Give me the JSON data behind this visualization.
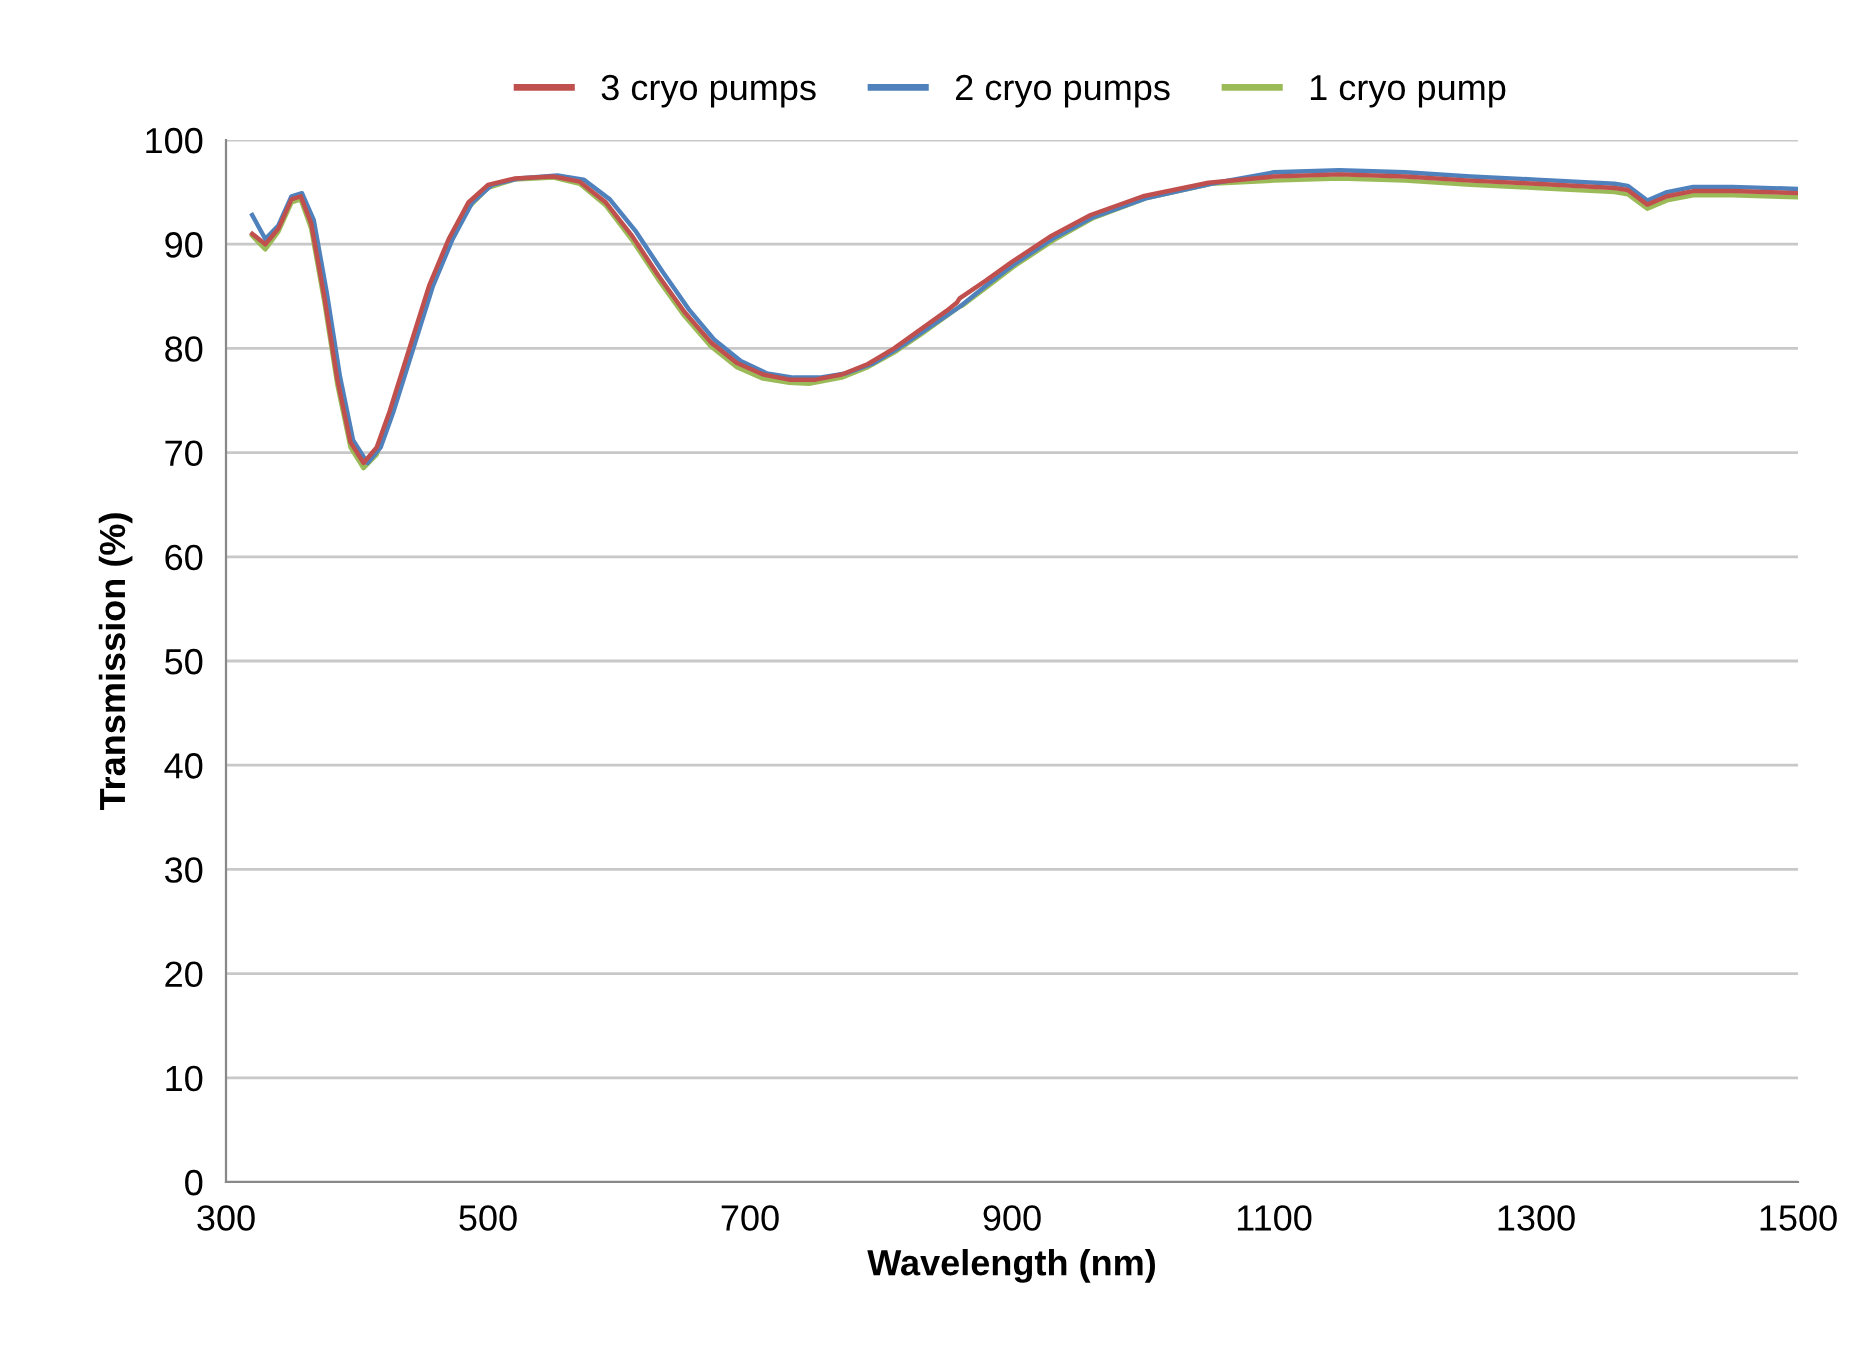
{
  "chart_data": {
    "type": "line",
    "xlabel": "Wavelength (nm)",
    "ylabel": "Transmission (%)",
    "xlim": [
      300,
      1500
    ],
    "xticks": [
      300,
      500,
      700,
      900,
      1100,
      1300,
      1500
    ],
    "ylim": [
      0,
      100
    ],
    "yticks": [
      0,
      10,
      20,
      30,
      40,
      50,
      60,
      70,
      80,
      90,
      100
    ],
    "grid": "y",
    "legend": "top",
    "marker": "none",
    "line_style": "solid",
    "series": [
      {
        "name": "3 cryo pumps",
        "color": "#c0504d",
        "x": [
          320,
          330,
          340,
          350,
          357,
          365,
          375,
          385,
          395,
          405,
          415,
          425,
          440,
          455,
          470,
          485,
          500,
          520,
          550,
          570,
          590,
          610,
          630,
          650,
          670,
          690,
          710,
          730,
          750,
          770,
          790,
          810,
          830,
          850,
          858,
          860,
          880,
          900,
          930,
          960,
          1000,
          1050,
          1100,
          1150,
          1200,
          1250,
          1300,
          1360,
          1370,
          1385,
          1400,
          1420,
          1450,
          1500
        ],
        "values": [
          91,
          90,
          91.5,
          94.3,
          94.6,
          92,
          85,
          77,
          71,
          69,
          70.5,
          74,
          80,
          86,
          90.5,
          94,
          95.7,
          96.3,
          96.5,
          96,
          94,
          90.8,
          87,
          83.5,
          80.6,
          78.6,
          77.5,
          77,
          77,
          77.5,
          78.5,
          80,
          81.8,
          83.6,
          84.4,
          84.8,
          86.5,
          88.3,
          90.8,
          92.8,
          94.6,
          95.9,
          96.5,
          96.7,
          96.5,
          96.1,
          95.8,
          95.4,
          95.2,
          93.8,
          94.6,
          95.1,
          95.1,
          94.9
        ]
      },
      {
        "name": "2 cryo pumps",
        "color": "#4f81bd",
        "x": [
          320,
          330,
          340,
          350,
          358,
          367,
          377,
          387,
          397,
          408,
          418,
          428,
          443,
          458,
          473,
          488,
          503,
          523,
          553,
          573,
          593,
          613,
          633,
          653,
          673,
          693,
          713,
          733,
          753,
          773,
          793,
          813,
          833,
          853,
          860,
          862,
          882,
          902,
          932,
          962,
          1002,
          1052,
          1100,
          1150,
          1200,
          1250,
          1300,
          1360,
          1370,
          1385,
          1400,
          1420,
          1450,
          1500
        ],
        "values": [
          92.8,
          90.5,
          91.8,
          94.6,
          94.9,
          92.3,
          85.3,
          77.3,
          71.2,
          69,
          70.5,
          74,
          80,
          86,
          90.5,
          94,
          95.7,
          96.3,
          96.6,
          96.2,
          94.3,
          91.2,
          87.4,
          83.8,
          80.8,
          78.8,
          77.6,
          77.2,
          77.2,
          77.6,
          78.5,
          80,
          81.7,
          83.4,
          84,
          84.2,
          86.2,
          88.1,
          90.6,
          92.6,
          94.4,
          95.8,
          96.9,
          97.1,
          96.9,
          96.5,
          96.2,
          95.8,
          95.6,
          94.2,
          95,
          95.5,
          95.5,
          95.3
        ]
      },
      {
        "name": "1 cryo pump",
        "color": "#9bbb59",
        "x": [
          320,
          330,
          340,
          350,
          357,
          365,
          375,
          385,
          395,
          405,
          415,
          425,
          440,
          455,
          470,
          485,
          500,
          520,
          550,
          570,
          590,
          610,
          630,
          650,
          670,
          690,
          710,
          730,
          745,
          770,
          790,
          810,
          830,
          850,
          860,
          862,
          882,
          902,
          932,
          962,
          1002,
          1052,
          1100,
          1150,
          1200,
          1250,
          1300,
          1360,
          1370,
          1385,
          1400,
          1420,
          1450,
          1500
        ],
        "values": [
          90.8,
          89.5,
          91.2,
          94,
          94.3,
          91.5,
          84.5,
          76.5,
          70.5,
          68.5,
          69.8,
          73.3,
          79.3,
          85.3,
          89.8,
          93.5,
          95.4,
          96.2,
          96.4,
          95.8,
          93.7,
          90.4,
          86.6,
          83.1,
          80.2,
          78.2,
          77.1,
          76.7,
          76.6,
          77.2,
          78.2,
          79.6,
          81.3,
          83.1,
          84,
          84.1,
          86,
          87.9,
          90.4,
          92.5,
          94.4,
          95.8,
          96.1,
          96.3,
          96.1,
          95.7,
          95.4,
          95,
          94.8,
          93.4,
          94.2,
          94.7,
          94.7,
          94.5
        ]
      }
    ]
  }
}
